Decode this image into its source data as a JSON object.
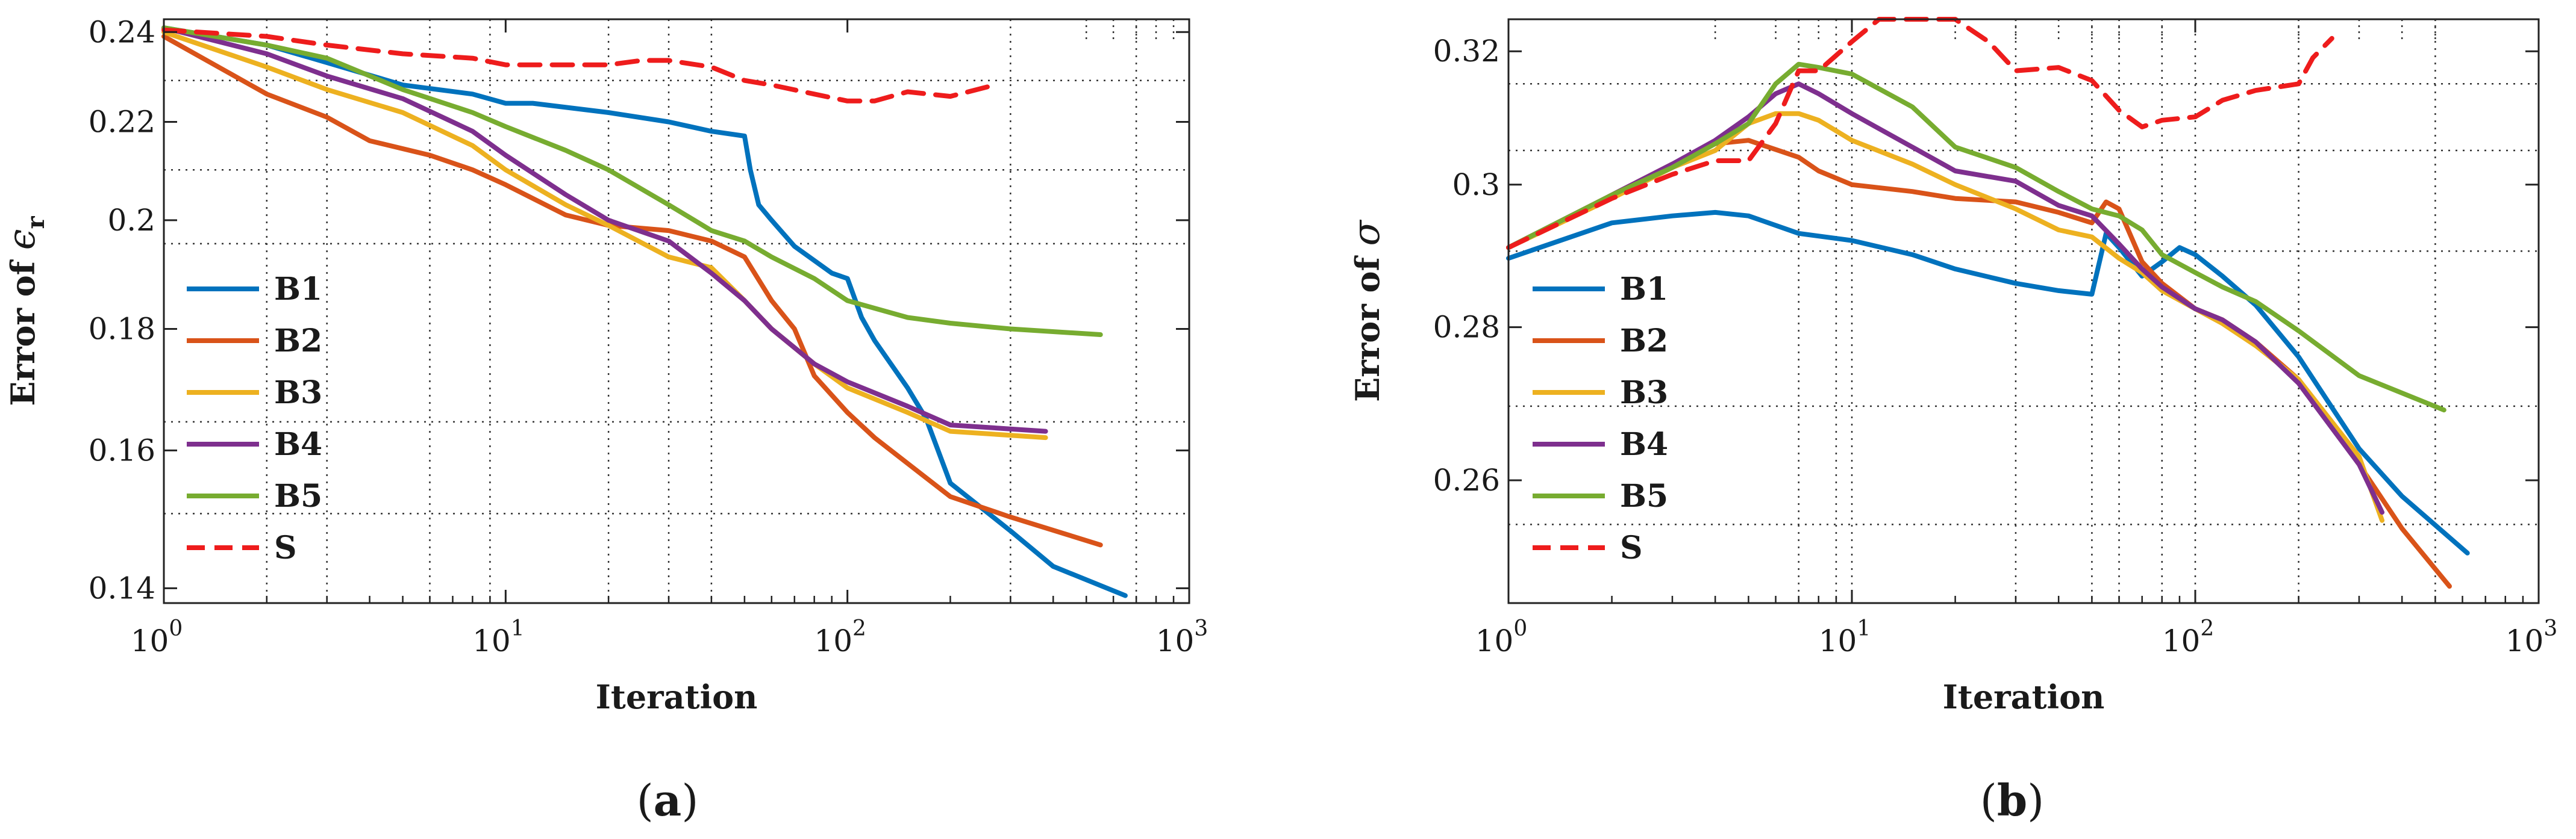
{
  "chart_data": [
    {
      "type": "line",
      "panel": "a",
      "caption": "a",
      "xlabel": "Iteration",
      "ylabel_prefix": "Error of ",
      "ylabel_symbol": "ϵ",
      "ylabel_sub": "r",
      "xscale": "log",
      "yscale": "log",
      "xlim": [
        1,
        1000
      ],
      "ylim": [
        0.138,
        0.243
      ],
      "xticks": [
        1,
        10,
        100,
        1000
      ],
      "xtick_labels": [
        "10",
        "10",
        "10",
        "10"
      ],
      "xtick_exps": [
        "0",
        "1",
        "2",
        "3"
      ],
      "yticks": [
        0.14,
        0.16,
        0.18,
        0.2,
        0.22,
        0.24
      ],
      "ytick_labels": [
        "0.14",
        "0.16",
        "0.18",
        "0.2",
        "0.22",
        "0.24"
      ],
      "grid": "dotted",
      "legend_position": "left",
      "series": [
        {
          "name": "B1",
          "color": "#0072BD",
          "dash": "solid",
          "x": [
            1,
            2,
            3,
            5,
            8,
            10,
            12,
            20,
            30,
            40,
            50,
            52,
            55,
            60,
            70,
            90,
            100,
            110,
            120,
            150,
            170,
            200,
            300,
            400,
            650
          ],
          "y": [
            0.241,
            0.237,
            0.233,
            0.228,
            0.226,
            0.224,
            0.224,
            0.222,
            0.22,
            0.218,
            0.217,
            0.21,
            0.203,
            0.2,
            0.195,
            0.19,
            0.189,
            0.182,
            0.178,
            0.17,
            0.165,
            0.155,
            0.148,
            0.143,
            0.139
          ]
        },
        {
          "name": "B2",
          "color": "#D95319",
          "dash": "solid",
          "x": [
            1,
            2,
            3,
            4,
            6,
            8,
            10,
            15,
            20,
            30,
            40,
            50,
            60,
            70,
            80,
            100,
            120,
            150,
            200,
            300,
            550
          ],
          "y": [
            0.239,
            0.226,
            0.221,
            0.216,
            0.213,
            0.21,
            0.207,
            0.201,
            0.199,
            0.198,
            0.196,
            0.193,
            0.185,
            0.18,
            0.172,
            0.166,
            0.162,
            0.158,
            0.153,
            0.15,
            0.146
          ]
        },
        {
          "name": "B3",
          "color": "#EDB120",
          "dash": "solid",
          "x": [
            1,
            2,
            3,
            5,
            8,
            10,
            15,
            20,
            30,
            40,
            50,
            60,
            80,
            100,
            150,
            200,
            380
          ],
          "y": [
            0.24,
            0.232,
            0.227,
            0.222,
            0.215,
            0.21,
            0.203,
            0.199,
            0.193,
            0.191,
            0.185,
            0.18,
            0.174,
            0.17,
            0.166,
            0.163,
            0.162
          ]
        },
        {
          "name": "B4",
          "color": "#7E2F8E",
          "dash": "solid",
          "x": [
            1,
            2,
            3,
            5,
            8,
            10,
            15,
            20,
            30,
            40,
            50,
            60,
            80,
            100,
            150,
            200,
            380
          ],
          "y": [
            0.241,
            0.235,
            0.23,
            0.225,
            0.218,
            0.213,
            0.205,
            0.2,
            0.196,
            0.19,
            0.185,
            0.18,
            0.174,
            0.171,
            0.167,
            0.164,
            0.163
          ]
        },
        {
          "name": "B5",
          "color": "#77AC30",
          "dash": "solid",
          "x": [
            1,
            2,
            3,
            5,
            8,
            10,
            15,
            20,
            30,
            40,
            50,
            60,
            80,
            100,
            150,
            200,
            300,
            550
          ],
          "y": [
            0.241,
            0.237,
            0.234,
            0.227,
            0.222,
            0.219,
            0.214,
            0.21,
            0.203,
            0.198,
            0.196,
            0.193,
            0.189,
            0.185,
            0.182,
            0.181,
            0.18,
            0.179
          ]
        },
        {
          "name": "S",
          "color": "#EE1C1C",
          "dash": "dashed",
          "x": [
            1,
            2,
            3,
            5,
            8,
            10,
            15,
            20,
            25,
            30,
            40,
            50,
            60,
            80,
            100,
            120,
            150,
            200,
            270
          ],
          "y": [
            0.2405,
            0.239,
            0.237,
            0.235,
            0.234,
            0.2325,
            0.2325,
            0.2325,
            0.2335,
            0.2335,
            0.232,
            0.229,
            0.228,
            0.226,
            0.2245,
            0.2245,
            0.2265,
            0.2255,
            0.228
          ]
        }
      ]
    },
    {
      "type": "line",
      "panel": "b",
      "caption": "b",
      "xlabel": "Iteration",
      "ylabel_prefix": "Error of ",
      "ylabel_symbol": "σ",
      "ylabel_sub": "",
      "xscale": "log",
      "yscale": "log",
      "xlim": [
        1,
        1000
      ],
      "ylim": [
        0.245,
        0.325
      ],
      "xticks": [
        1,
        10,
        100,
        1000
      ],
      "xtick_labels": [
        "10",
        "10",
        "10",
        "10"
      ],
      "xtick_exps": [
        "0",
        "1",
        "2",
        "3"
      ],
      "yticks": [
        0.26,
        0.28,
        0.3,
        0.32
      ],
      "ytick_labels": [
        "0.26",
        "0.28",
        "0.3",
        "0.32"
      ],
      "grid": "dotted",
      "legend_position": "left",
      "series": [
        {
          "name": "B1",
          "color": "#0072BD",
          "dash": "solid",
          "x": [
            1,
            2,
            3,
            4,
            5,
            7,
            10,
            15,
            20,
            30,
            40,
            50,
            55,
            60,
            70,
            80,
            90,
            100,
            120,
            150,
            200,
            300,
            400,
            620
          ],
          "y": [
            0.2895,
            0.2945,
            0.2955,
            0.296,
            0.2955,
            0.293,
            0.292,
            0.29,
            0.288,
            0.286,
            0.285,
            0.2845,
            0.293,
            0.291,
            0.287,
            0.289,
            0.291,
            0.29,
            0.287,
            0.283,
            0.276,
            0.264,
            0.258,
            0.251
          ]
        },
        {
          "name": "B2",
          "color": "#D95319",
          "dash": "solid",
          "x": [
            1,
            2,
            3,
            4,
            5,
            7,
            8,
            10,
            15,
            20,
            30,
            40,
            50,
            55,
            60,
            70,
            80,
            100,
            120,
            150,
            200,
            300,
            400,
            550
          ],
          "y": [
            0.291,
            0.2985,
            0.303,
            0.306,
            0.3065,
            0.304,
            0.302,
            0.3,
            0.299,
            0.298,
            0.2975,
            0.296,
            0.2945,
            0.2975,
            0.2965,
            0.289,
            0.286,
            0.2825,
            0.281,
            0.278,
            0.273,
            0.262,
            0.254,
            0.247
          ]
        },
        {
          "name": "B3",
          "color": "#EDB120",
          "dash": "solid",
          "x": [
            1,
            2,
            3,
            4,
            5,
            6,
            7,
            8,
            10,
            15,
            20,
            30,
            40,
            50,
            60,
            70,
            80,
            100,
            120,
            150,
            200,
            300,
            350
          ],
          "y": [
            0.291,
            0.298,
            0.3025,
            0.305,
            0.309,
            0.3105,
            0.3105,
            0.3095,
            0.3065,
            0.303,
            0.3,
            0.2965,
            0.2935,
            0.2925,
            0.2895,
            0.2875,
            0.285,
            0.2825,
            0.2805,
            0.2775,
            0.273,
            0.263,
            0.255
          ]
        },
        {
          "name": "B4",
          "color": "#7E2F8E",
          "dash": "solid",
          "x": [
            1,
            2,
            3,
            4,
            5,
            6,
            7,
            8,
            10,
            15,
            20,
            30,
            40,
            50,
            60,
            70,
            80,
            100,
            120,
            150,
            200,
            300,
            350
          ],
          "y": [
            0.291,
            0.2985,
            0.303,
            0.3065,
            0.31,
            0.3135,
            0.315,
            0.3135,
            0.3105,
            0.3055,
            0.302,
            0.3005,
            0.297,
            0.2955,
            0.2915,
            0.288,
            0.2855,
            0.2825,
            0.281,
            0.278,
            0.2725,
            0.262,
            0.256
          ]
        },
        {
          "name": "B5",
          "color": "#77AC30",
          "dash": "solid",
          "x": [
            1,
            2,
            3,
            4,
            5,
            6,
            7,
            8,
            10,
            15,
            20,
            30,
            40,
            50,
            60,
            70,
            80,
            100,
            120,
            150,
            200,
            300,
            530
          ],
          "y": [
            0.291,
            0.2985,
            0.3025,
            0.306,
            0.309,
            0.315,
            0.318,
            0.3175,
            0.3165,
            0.3115,
            0.3055,
            0.3025,
            0.299,
            0.2965,
            0.2955,
            0.2935,
            0.29,
            0.2875,
            0.2855,
            0.2835,
            0.2795,
            0.2735,
            0.269
          ]
        },
        {
          "name": "S",
          "color": "#EE1C1C",
          "dash": "dashed",
          "x": [
            1,
            2,
            3,
            4,
            5,
            6,
            7,
            8,
            10,
            12,
            15,
            20,
            25,
            30,
            40,
            50,
            60,
            70,
            80,
            100,
            120,
            150,
            200,
            220,
            250
          ],
          "y": [
            0.291,
            0.298,
            0.3015,
            0.3035,
            0.3035,
            0.309,
            0.317,
            0.317,
            0.3215,
            0.325,
            0.325,
            0.325,
            0.3215,
            0.317,
            0.3175,
            0.3155,
            0.311,
            0.3085,
            0.3095,
            0.31,
            0.3125,
            0.314,
            0.315,
            0.319,
            0.322
          ]
        }
      ]
    }
  ]
}
